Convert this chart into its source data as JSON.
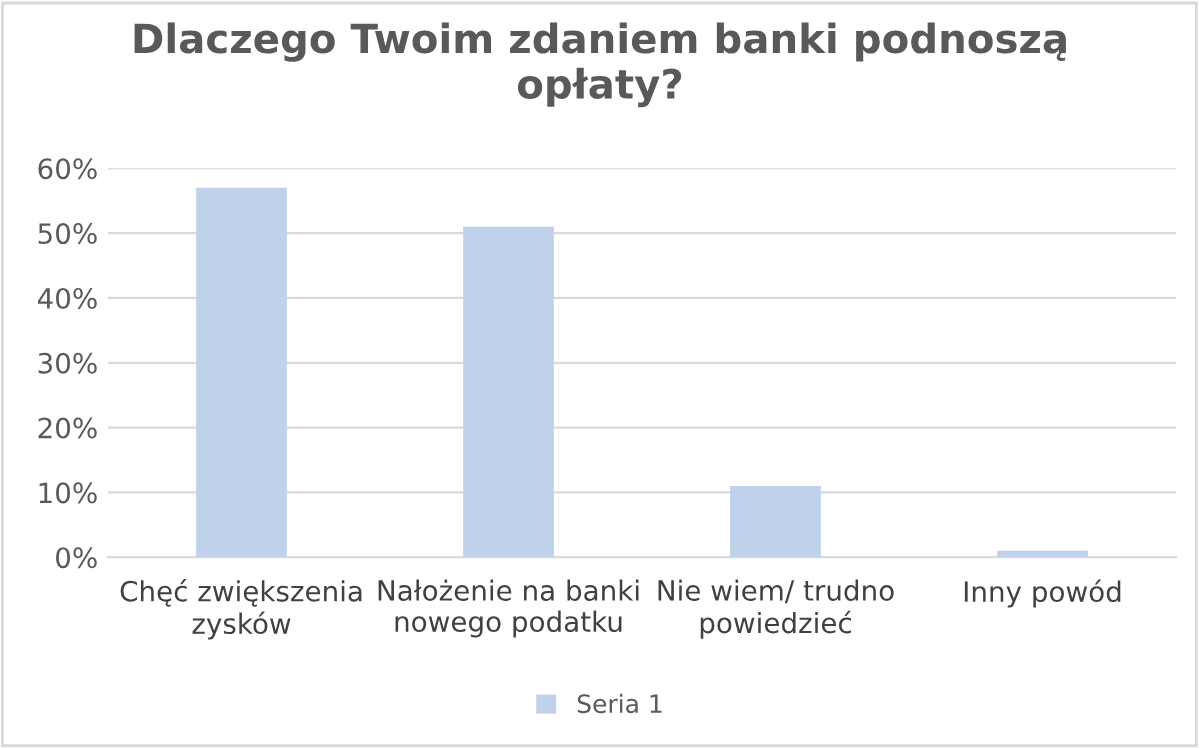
{
  "chart_data": {
    "type": "bar",
    "title": "Dlaczego Twoim zdaniem banki podnoszą\nopłaty?",
    "categories": [
      "Chęć zwiększenia\nzysków",
      "Nałożenie na banki\nnowego podatku",
      "Nie wiem/ trudno\npowiedzieć",
      "Inny powód"
    ],
    "series": [
      {
        "name": "Seria 1",
        "color": "#c0d2eb",
        "values": [
          57,
          51,
          11,
          1
        ]
      }
    ],
    "ylim": [
      0,
      60
    ],
    "yticks": [
      {
        "value": 0,
        "label": "0%"
      },
      {
        "value": 10,
        "label": "10%"
      },
      {
        "value": 20,
        "label": "20%"
      },
      {
        "value": 30,
        "label": "30%"
      },
      {
        "value": 40,
        "label": "40%"
      },
      {
        "value": 50,
        "label": "50%"
      },
      {
        "value": 60,
        "label": "60%"
      }
    ],
    "grid": "y",
    "legend": "bottom"
  }
}
